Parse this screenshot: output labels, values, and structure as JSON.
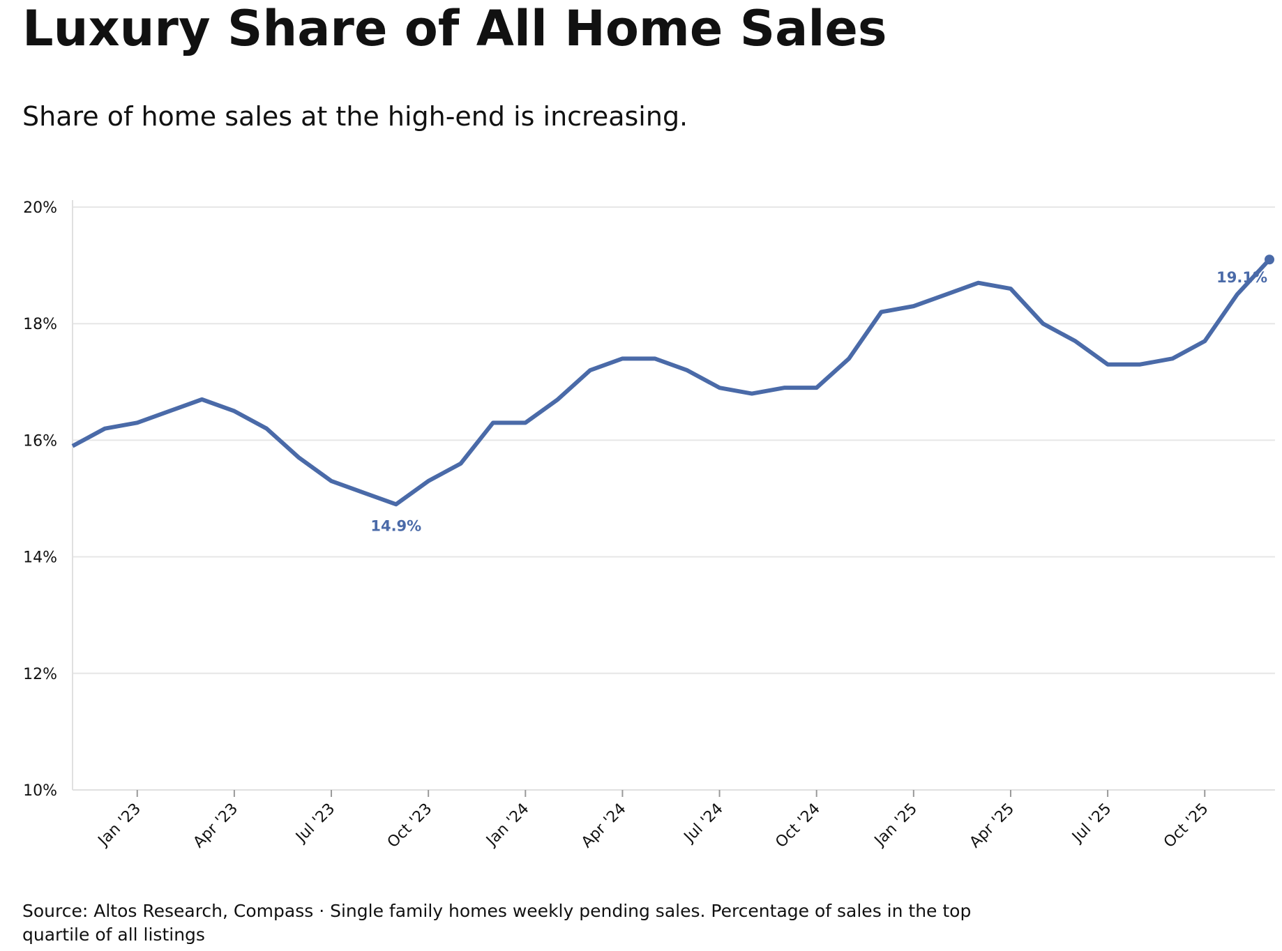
{
  "chart_data": {
    "type": "line",
    "title": "Luxury Share of All Home Sales",
    "subtitle": "Share of home sales at the high-end is increasing.",
    "source": "Source: Altos Research, Compass · Single family homes weekly pending sales. Percentage of sales in the top quartile of all listings",
    "x": [
      "2022-11",
      "2022-12",
      "2023-01",
      "2023-02",
      "2023-03",
      "2023-04",
      "2023-05",
      "2023-06",
      "2023-07",
      "2023-08",
      "2023-09",
      "2023-10",
      "2023-11",
      "2023-12",
      "2024-01",
      "2024-02",
      "2024-03",
      "2024-04",
      "2024-05",
      "2024-06",
      "2024-07",
      "2024-08",
      "2024-09",
      "2024-10",
      "2024-11",
      "2024-12",
      "2025-01",
      "2025-02",
      "2025-03",
      "2025-04",
      "2025-05",
      "2025-06",
      "2025-07",
      "2025-08",
      "2025-09",
      "2025-10",
      "2025-11",
      "2025-12"
    ],
    "series": [
      {
        "name": "Luxury share",
        "color": "#4a6aa8",
        "values": [
          15.9,
          16.2,
          16.3,
          16.5,
          16.7,
          16.5,
          16.2,
          15.7,
          15.3,
          15.1,
          14.9,
          15.3,
          15.6,
          16.3,
          16.3,
          16.7,
          17.2,
          17.4,
          17.4,
          17.2,
          16.9,
          16.8,
          16.9,
          16.9,
          17.4,
          18.2,
          18.3,
          18.5,
          18.7,
          18.6,
          18.0,
          17.7,
          17.3,
          17.3,
          17.4,
          17.7,
          18.5,
          19.1
        ],
        "value_labels": [
          null,
          null,
          null,
          null,
          null,
          null,
          null,
          null,
          null,
          null,
          "14.9%",
          null,
          null,
          null,
          null,
          null,
          null,
          null,
          null,
          null,
          null,
          null,
          null,
          null,
          null,
          null,
          null,
          null,
          null,
          null,
          null,
          null,
          null,
          null,
          null,
          null,
          null,
          "19.1%"
        ]
      }
    ],
    "xlim": [
      "2022-11",
      "2025-12"
    ],
    "xticks": [
      {
        "value": "2023-01",
        "label": "Jan '23"
      },
      {
        "value": "2023-04",
        "label": "Apr '23"
      },
      {
        "value": "2023-07",
        "label": "Jul '23"
      },
      {
        "value": "2023-10",
        "label": "Oct '23"
      },
      {
        "value": "2024-01",
        "label": "Jan '24"
      },
      {
        "value": "2024-04",
        "label": "Apr '24"
      },
      {
        "value": "2024-07",
        "label": "Jul '24"
      },
      {
        "value": "2024-10",
        "label": "Oct '24"
      },
      {
        "value": "2025-01",
        "label": "Jan '25"
      },
      {
        "value": "2025-04",
        "label": "Apr '25"
      },
      {
        "value": "2025-07",
        "label": "Jul '25"
      },
      {
        "value": "2025-10",
        "label": "Oct '25"
      }
    ],
    "ylim": [
      10,
      20
    ],
    "yticks": [
      {
        "value": 10,
        "label": "10%"
      },
      {
        "value": 12,
        "label": "12%"
      },
      {
        "value": 14,
        "label": "14%"
      },
      {
        "value": 16,
        "label": "16%"
      },
      {
        "value": 18,
        "label": "18%"
      },
      {
        "value": 20,
        "label": "20%"
      }
    ],
    "grid": true
  }
}
